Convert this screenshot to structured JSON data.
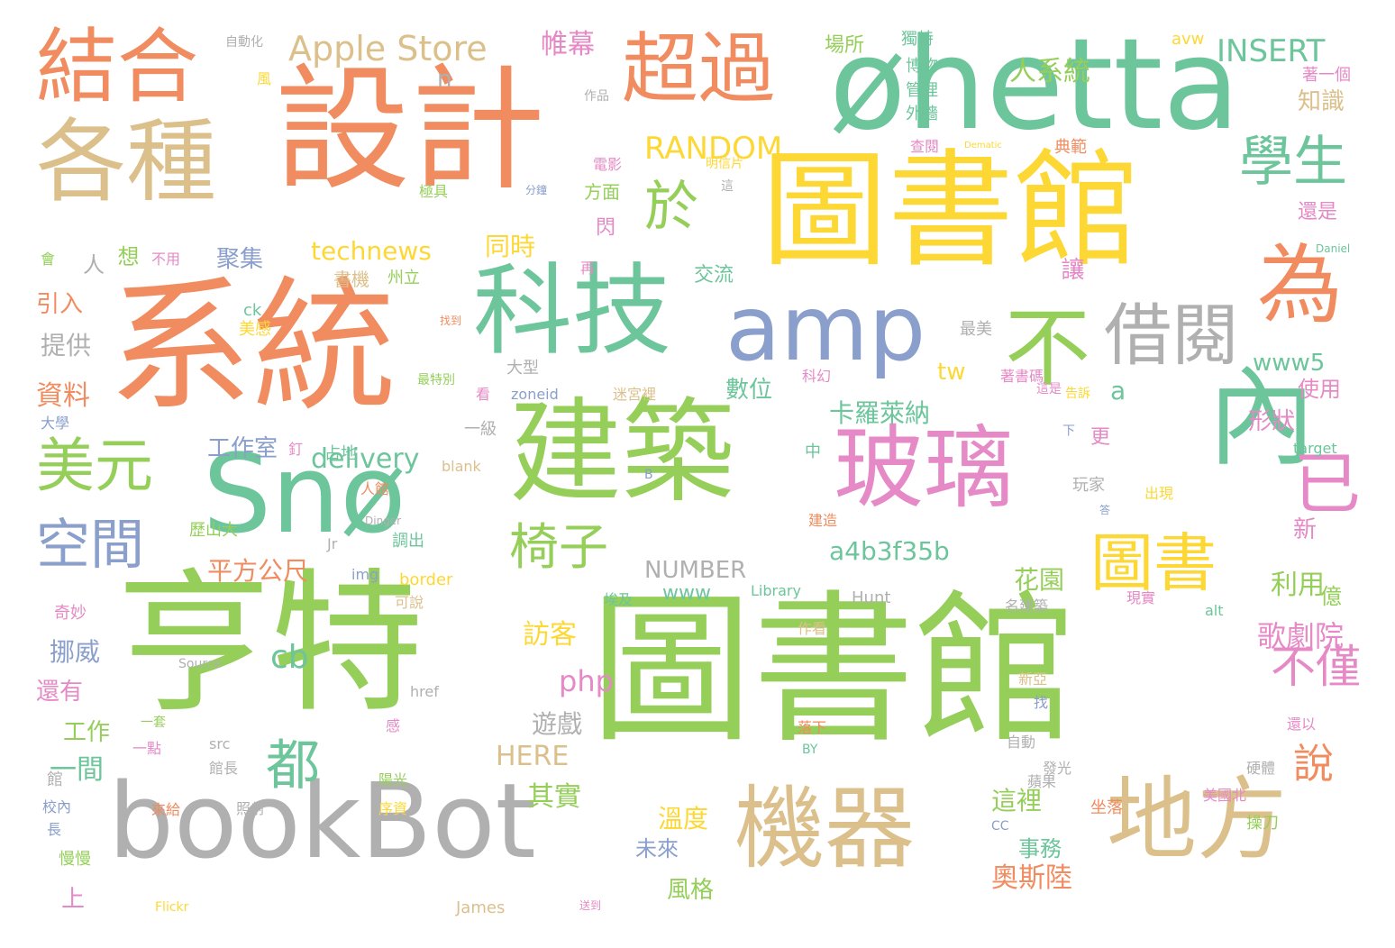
{
  "palette": {
    "orange": "#f08c5f",
    "green": "#95cf5a",
    "teal": "#6cc59b",
    "yellow": "#fdd835",
    "tan": "#dcc08c",
    "gray": "#b0b0b0",
    "pink": "#e58ac6",
    "blue": "#8a9fcb",
    "lightpink": "#f4a9c6"
  },
  "words": [
    {
      "text": "亨特",
      "color": "green"
    },
    {
      "text": "圖書館",
      "color": "green"
    },
    {
      "text": "系統",
      "color": "orange"
    },
    {
      "text": "設計",
      "color": "orange"
    },
    {
      "text": "圖書館",
      "color": "yellow"
    },
    {
      "text": "øhetta",
      "color": "teal"
    },
    {
      "text": "建築",
      "color": "green"
    },
    {
      "text": "Snø",
      "color": "teal"
    },
    {
      "text": "bookBot",
      "color": "gray"
    },
    {
      "text": "機器",
      "color": "tan"
    },
    {
      "text": "地方",
      "color": "tan"
    },
    {
      "text": "玻璃",
      "color": "pink"
    },
    {
      "text": "內",
      "color": "teal"
    },
    {
      "text": "科技",
      "color": "teal"
    },
    {
      "text": "各種",
      "color": "tan"
    },
    {
      "text": "結合",
      "color": "orange"
    },
    {
      "text": "超過",
      "color": "orange"
    },
    {
      "text": "amp",
      "color": "blue"
    },
    {
      "text": "不",
      "color": "green"
    },
    {
      "text": "為",
      "color": "orange"
    },
    {
      "text": "借閱",
      "color": "gray"
    },
    {
      "text": "學生",
      "color": "teal"
    },
    {
      "text": "於",
      "color": "green"
    },
    {
      "text": "美元",
      "color": "green"
    },
    {
      "text": "空間",
      "color": "blue"
    },
    {
      "text": "都",
      "color": "teal"
    },
    {
      "text": "圖書",
      "color": "yellow"
    },
    {
      "text": "已",
      "color": "pink"
    },
    {
      "text": "椅子",
      "color": "green"
    },
    {
      "text": "不僅",
      "color": "pink"
    },
    {
      "text": "說",
      "color": "orange"
    },
    {
      "text": "Apple Store",
      "color": "tan"
    },
    {
      "text": "INSERT",
      "color": "teal"
    },
    {
      "text": "RANDOM",
      "color": "yellow"
    },
    {
      "text": "technews",
      "color": "yellow"
    },
    {
      "text": "delivery",
      "color": "teal"
    },
    {
      "text": "a4b3f35b",
      "color": "teal"
    },
    {
      "text": "NUMBER",
      "color": "gray"
    },
    {
      "text": "www5",
      "color": "teal"
    },
    {
      "text": "www",
      "color": "teal"
    },
    {
      "text": "HERE",
      "color": "tan"
    },
    {
      "text": "php",
      "color": "pink"
    },
    {
      "text": "cb",
      "color": "teal"
    },
    {
      "text": "tw",
      "color": "yellow"
    },
    {
      "text": "帷幕",
      "color": "pink"
    },
    {
      "text": "人系統",
      "color": "green"
    },
    {
      "text": "同時",
      "color": "yellow"
    },
    {
      "text": "卡羅萊納",
      "color": "teal"
    },
    {
      "text": "數位",
      "color": "teal"
    },
    {
      "text": "平方公尺",
      "color": "orange"
    },
    {
      "text": "工作室",
      "color": "blue"
    },
    {
      "text": "花園",
      "color": "green"
    },
    {
      "text": "訪客",
      "color": "yellow"
    },
    {
      "text": "挪威",
      "color": "blue"
    },
    {
      "text": "遊戲",
      "color": "gray"
    },
    {
      "text": "其實",
      "color": "green"
    },
    {
      "text": "歌劇院",
      "color": "pink"
    },
    {
      "text": "奧斯陸",
      "color": "orange"
    },
    {
      "text": "溫度",
      "color": "yellow"
    },
    {
      "text": "這裡",
      "color": "green"
    },
    {
      "text": "事務",
      "color": "teal"
    },
    {
      "text": "風格",
      "color": "green"
    },
    {
      "text": "未來",
      "color": "blue"
    },
    {
      "text": "一間",
      "color": "teal"
    },
    {
      "text": "工作",
      "color": "green"
    },
    {
      "text": "還有",
      "color": "pink"
    },
    {
      "text": "資料",
      "color": "orange"
    },
    {
      "text": "提供",
      "color": "gray"
    },
    {
      "text": "引入",
      "color": "orange"
    },
    {
      "text": "聚集",
      "color": "blue"
    },
    {
      "text": "想",
      "color": "green"
    },
    {
      "text": "人",
      "color": "gray"
    },
    {
      "text": "使用",
      "color": "pink"
    },
    {
      "text": "形狀",
      "color": "pink"
    },
    {
      "text": "利用",
      "color": "green"
    },
    {
      "text": "知識",
      "color": "tan"
    },
    {
      "text": "還是",
      "color": "pink"
    },
    {
      "text": "新",
      "color": "pink"
    },
    {
      "text": "億",
      "color": "green"
    },
    {
      "text": "讓",
      "color": "pink"
    },
    {
      "text": "交流",
      "color": "teal"
    },
    {
      "text": "閃",
      "color": "pink"
    },
    {
      "text": "方面",
      "color": "green"
    },
    {
      "text": "場所",
      "color": "green"
    },
    {
      "text": "更",
      "color": "pink"
    },
    {
      "text": "上",
      "color": "pink"
    },
    {
      "text": "a",
      "color": "teal"
    },
    {
      "text": "n",
      "color": "gray"
    },
    {
      "text": "一級",
      "color": "gray"
    },
    {
      "text": "大型",
      "color": "gray"
    },
    {
      "text": "再",
      "color": "pink"
    },
    {
      "text": "書機",
      "color": "tan"
    },
    {
      "text": "州立",
      "color": "green"
    },
    {
      "text": "不用",
      "color": "pink"
    },
    {
      "text": "會",
      "color": "green"
    },
    {
      "text": "電影",
      "color": "pink"
    },
    {
      "text": "極具",
      "color": "green"
    },
    {
      "text": "獨特",
      "color": "teal"
    },
    {
      "text": "博物",
      "color": "teal"
    },
    {
      "text": "管理",
      "color": "teal"
    },
    {
      "text": "外牆",
      "color": "teal"
    },
    {
      "text": "查閱",
      "color": "pink"
    },
    {
      "text": "典範",
      "color": "orange"
    },
    {
      "text": "著一個",
      "color": "pink"
    },
    {
      "text": "avw",
      "color": "yellow"
    },
    {
      "text": "大學",
      "color": "blue"
    },
    {
      "text": "看",
      "color": "pink"
    },
    {
      "text": "zoneid",
      "color": "blue"
    },
    {
      "text": "迷宮裡",
      "color": "tan"
    },
    {
      "text": "科幻",
      "color": "pink"
    },
    {
      "text": "著書碼",
      "color": "pink"
    },
    {
      "text": "告訴",
      "color": "yellow"
    },
    {
      "text": "這是",
      "color": "pink"
    },
    {
      "text": "最美",
      "color": "gray"
    },
    {
      "text": "target",
      "color": "teal"
    },
    {
      "text": "blank",
      "color": "tan"
    },
    {
      "text": "B",
      "color": "blue"
    },
    {
      "text": "中",
      "color": "teal"
    },
    {
      "text": "玩家",
      "color": "gray"
    },
    {
      "text": "出現",
      "color": "yellow"
    },
    {
      "text": "人館",
      "color": "orange"
    },
    {
      "text": "占地",
      "color": "teal"
    },
    {
      "text": "釘",
      "color": "pink"
    },
    {
      "text": "歷山大",
      "color": "green"
    },
    {
      "text": "調出",
      "color": "teal"
    },
    {
      "text": "建造",
      "color": "orange"
    },
    {
      "text": "img",
      "color": "blue"
    },
    {
      "text": "border",
      "color": "yellow"
    },
    {
      "text": "可說",
      "color": "tan"
    },
    {
      "text": "Library",
      "color": "teal"
    },
    {
      "text": "Hunt",
      "color": "gray"
    },
    {
      "text": "名建築",
      "color": "gray"
    },
    {
      "text": "現實",
      "color": "pink"
    },
    {
      "text": "alt",
      "color": "teal"
    },
    {
      "text": "奇妙",
      "color": "pink"
    },
    {
      "text": "埃及",
      "color": "teal"
    },
    {
      "text": "作看",
      "color": "tan"
    },
    {
      "text": "Source",
      "color": "gray"
    },
    {
      "text": "href",
      "color": "gray"
    },
    {
      "text": "新亞",
      "color": "tan"
    },
    {
      "text": "找",
      "color": "blue"
    },
    {
      "text": "一套",
      "color": "green"
    },
    {
      "text": "一點",
      "color": "pink"
    },
    {
      "text": "src",
      "color": "gray"
    },
    {
      "text": "落下",
      "color": "orange"
    },
    {
      "text": "自動",
      "color": "gray"
    },
    {
      "text": "還以",
      "color": "pink"
    },
    {
      "text": "BY",
      "color": "teal"
    },
    {
      "text": "蘋果",
      "color": "gray"
    },
    {
      "text": "發光",
      "color": "gray"
    },
    {
      "text": "硬體",
      "color": "gray"
    },
    {
      "text": "館長",
      "color": "gray"
    },
    {
      "text": "陽光",
      "color": "green"
    },
    {
      "text": "館",
      "color": "gray"
    },
    {
      "text": "校內",
      "color": "blue"
    },
    {
      "text": "來給",
      "color": "orange"
    },
    {
      "text": "照射",
      "color": "gray"
    },
    {
      "text": "序資",
      "color": "yellow"
    },
    {
      "text": "坐落",
      "color": "orange"
    },
    {
      "text": "美國北",
      "color": "pink"
    },
    {
      "text": "長",
      "color": "blue"
    },
    {
      "text": "慢慢",
      "color": "green"
    },
    {
      "text": "James",
      "color": "tan"
    },
    {
      "text": "CC",
      "color": "blue"
    },
    {
      "text": "操刀",
      "color": "green"
    },
    {
      "text": "Flickr",
      "color": "yellow"
    },
    {
      "text": "感",
      "color": "pink"
    },
    {
      "text": "ck",
      "color": "teal"
    },
    {
      "text": "美感",
      "color": "yellow"
    },
    {
      "text": "Jr",
      "color": "gray"
    },
    {
      "text": "自動化",
      "color": "gray"
    },
    {
      "text": "風",
      "color": "yellow"
    },
    {
      "text": "作品",
      "color": "gray"
    },
    {
      "text": "明信片",
      "color": "yellow"
    },
    {
      "text": "這",
      "color": "gray"
    },
    {
      "text": "分鐘",
      "color": "blue"
    },
    {
      "text": "Dematic",
      "color": "yellow"
    },
    {
      "text": "Daniel",
      "color": "teal"
    },
    {
      "text": "Dinger",
      "color": "gray"
    },
    {
      "text": "最特別",
      "color": "green"
    },
    {
      "text": "找到",
      "color": "orange"
    },
    {
      "text": "下",
      "color": "blue"
    },
    {
      "text": "答",
      "color": "blue"
    },
    {
      "text": "送到",
      "color": "pink"
    }
  ]
}
